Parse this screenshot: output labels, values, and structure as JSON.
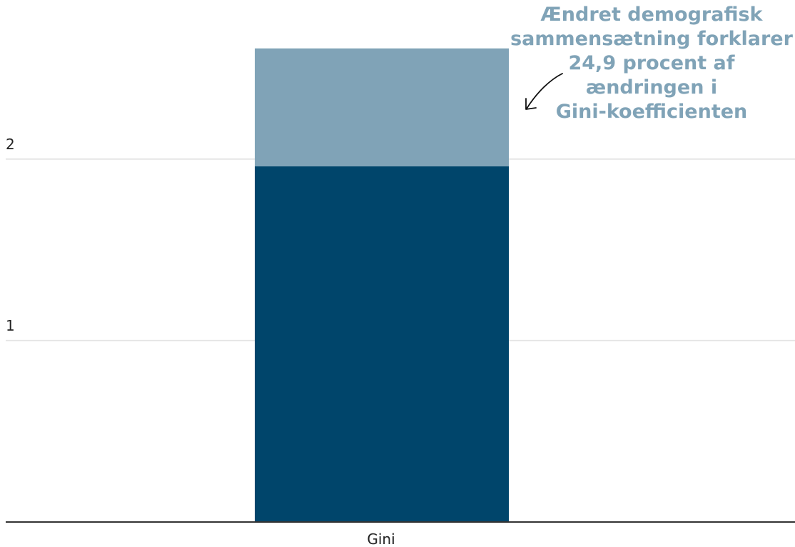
{
  "chart_data": {
    "type": "bar",
    "stacked": true,
    "categories": [
      "Gini"
    ],
    "series": [
      {
        "values": [
          1.96
        ],
        "color": "#00456b"
      },
      {
        "values": [
          0.65
        ],
        "color": "#80a3b7"
      }
    ],
    "yticks": [
      1,
      2
    ],
    "ylim": [
      0,
      2.68
    ],
    "grid": true,
    "annotation": {
      "lines": [
        "Ændret demografisk",
        "sammensætning forklarer",
        "24,9 procent af",
        "ændringen i",
        "Gini-koefficienten"
      ],
      "color": "#80a3b7"
    },
    "colors": {
      "grid": "#e6e6e6",
      "axis": "#333333",
      "text": "#222222"
    }
  }
}
